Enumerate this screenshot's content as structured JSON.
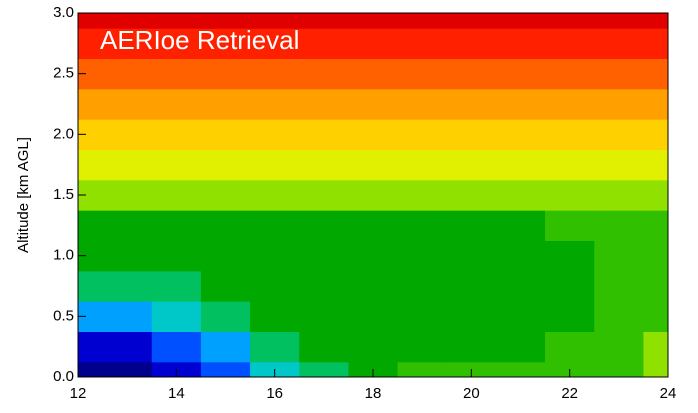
{
  "chart_data": {
    "type": "contour",
    "title": "AERIoe Retrieval",
    "ylabel": "Altitude [km AGL]",
    "x": [
      12,
      13,
      14,
      15,
      16,
      17,
      18,
      19,
      20,
      21,
      22,
      23,
      24
    ],
    "y": [
      0,
      0.25,
      0.5,
      0.75,
      1,
      1.25,
      1.5,
      1.75,
      2,
      2.25,
      2.5,
      2.75,
      3
    ],
    "z": [
      [
        0,
        0,
        1,
        2,
        4,
        5,
        6,
        7,
        7,
        7,
        7,
        7,
        8
      ],
      [
        1,
        1,
        2,
        3,
        5,
        6,
        6,
        6,
        6,
        6,
        7,
        7,
        8
      ],
      [
        3,
        3,
        4,
        5,
        6,
        6,
        6,
        6,
        6,
        6,
        6,
        7,
        7
      ],
      [
        5,
        5,
        5,
        6,
        6,
        6,
        6,
        6,
        6,
        6,
        6,
        7,
        7
      ],
      [
        6,
        6,
        6,
        6,
        6,
        6,
        6,
        6,
        6,
        6,
        6,
        7,
        7
      ],
      [
        6,
        6,
        6,
        6,
        6,
        6,
        6,
        6,
        6,
        6,
        7,
        7,
        7
      ],
      [
        8,
        8,
        8,
        8,
        8,
        8,
        8,
        8,
        8,
        8,
        8,
        8,
        8
      ],
      [
        9,
        9,
        9,
        9,
        9,
        9,
        9,
        9,
        9,
        9,
        9,
        9,
        9
      ],
      [
        10,
        10,
        10,
        10,
        10,
        10,
        10,
        10,
        10,
        10,
        10,
        10,
        10
      ],
      [
        11,
        11,
        11,
        11,
        11,
        11,
        11,
        11,
        11,
        11,
        11,
        11,
        11
      ],
      [
        12,
        12,
        12,
        12,
        12,
        12,
        12,
        12,
        12,
        12,
        12,
        12,
        12
      ],
      [
        13,
        13,
        13,
        13,
        13,
        13,
        13,
        13,
        13,
        13,
        13,
        13,
        13
      ],
      [
        14,
        14,
        14,
        14,
        14,
        14,
        14,
        14,
        14,
        14,
        14,
        14,
        14
      ]
    ],
    "zlim": [
      0,
      14
    ],
    "colormap": [
      "#00008b",
      "#0000d0",
      "#0050ff",
      "#00a0ff",
      "#00c8c8",
      "#00c060",
      "#00a800",
      "#30c000",
      "#90e000",
      "#e0f000",
      "#ffd000",
      "#ffa000",
      "#ff6000",
      "#ff2000",
      "#e00000"
    ],
    "xlim": [
      12,
      24
    ],
    "xticks": [
      12,
      14,
      16,
      18,
      20,
      22,
      24
    ],
    "ylim": [
      0,
      3
    ],
    "yticks": [
      {
        "value": 0,
        "label": "0.0"
      },
      {
        "value": 0.5,
        "label": "0.5"
      },
      {
        "value": 1,
        "label": "1.0"
      },
      1.5,
      {
        "value": 2,
        "label": "2.0"
      },
      2.5,
      {
        "value": 3,
        "label": "3.0"
      }
    ]
  }
}
